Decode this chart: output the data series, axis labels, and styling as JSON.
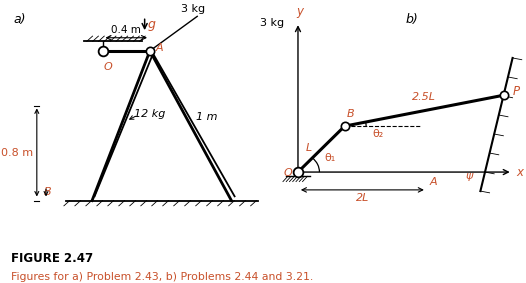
{
  "bg_color": "#ffffff",
  "fig_title": "FIGURE 2.47",
  "fig_subtitle": "Figures for a) Problem 2.43, b) Problems 2.44 and 3.21.",
  "label_color": "#c8502a",
  "black": "#000000",
  "a_label": "a)",
  "b_label": "b)",
  "part_a": {
    "dim_04": "0.4 m",
    "g_label": "g",
    "mass_label": "12 kg",
    "dim_08": "0.8 m",
    "dim_1m": "1 m",
    "mass3_label": "3 kg",
    "A_label": "A",
    "B_label": "B",
    "O_label": "O"
  },
  "part_b": {
    "y_label": "y",
    "x_label": "x",
    "O_label": "O",
    "B_label": "B",
    "P_label": "P",
    "A_label": "A",
    "L_label": "L",
    "len_label": "2.5L",
    "dim_2L": "2L",
    "theta1_label": "θ₁",
    "theta2_label": "θ₂",
    "psi_label": "ψ",
    "mass_label": "3 kg"
  }
}
